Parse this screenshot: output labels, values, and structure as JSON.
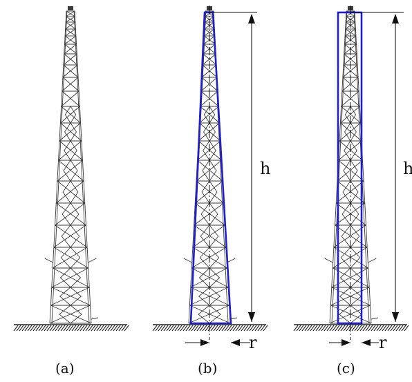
{
  "panels": [
    {
      "id": "a",
      "caption": "(a)",
      "model": "none"
    },
    {
      "id": "b",
      "caption": "(b)",
      "model": "tapered",
      "height_label": "h",
      "radius_label": "r"
    },
    {
      "id": "c",
      "caption": "(c)",
      "model": "uniform",
      "height_label": "h",
      "radius_label": "r"
    }
  ],
  "colors": {
    "model_outline": "#1f1fd0",
    "tower": "#3a3a3a",
    "ground": "#222222"
  }
}
